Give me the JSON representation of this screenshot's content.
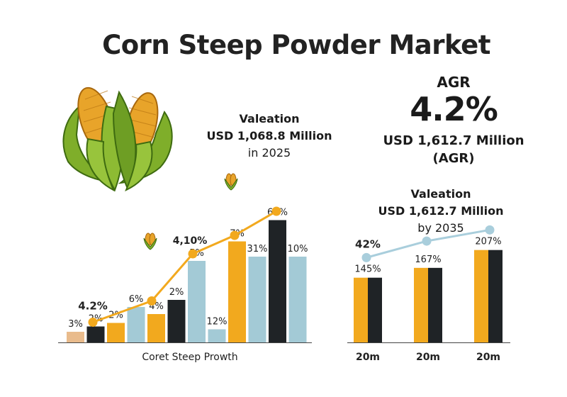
{
  "title": "Corn Steep Powder Market",
  "left_callout": {
    "label": "Valeation",
    "amount": "USD 1,068.8 Million",
    "note": "in 2025"
  },
  "agr": {
    "label": "AGR",
    "value": "4.2%",
    "amount": "USD 1,612.7 Million",
    "note": "(AGR)"
  },
  "right_callout": {
    "label": "Valeation",
    "amount": "USD 1,612.7 Million",
    "note": "by 2035"
  },
  "colors": {
    "orange": "#F2A91E",
    "light_blue": "#A3CAD6",
    "black": "#1F2326",
    "peach": "#E9BB8C",
    "line_blue": "#A9CEDC"
  },
  "icons": [
    "corn-illustration",
    "corn-marker-icon"
  ],
  "chart_data": [
    {
      "type": "bar",
      "xlabel": "Coret Steep Prowth",
      "bars": [
        {
          "label": "3%",
          "value": 3,
          "color": "peach"
        },
        {
          "label": "2%",
          "value": 4.5,
          "color": "black"
        },
        {
          "label": "2%",
          "value": 5.5,
          "color": "orange"
        },
        {
          "label": "6%",
          "value": 10,
          "color": "light_blue"
        },
        {
          "label": "4%",
          "value": 8,
          "color": "orange"
        },
        {
          "label": "2%",
          "value": 12,
          "color": "black"
        },
        {
          "label": "5%",
          "value": 23,
          "color": "light_blue"
        },
        {
          "label": "12%",
          "value": 3.7,
          "color": "light_blue"
        },
        {
          "label": "7%",
          "value": 28.5,
          "color": "orange"
        },
        {
          "label": "31%",
          "value": 24.2,
          "color": "light_blue"
        },
        {
          "label": "65%",
          "value": 34.5,
          "color": "black"
        },
        {
          "label": "10%",
          "value": 24.2,
          "color": "light_blue"
        }
      ],
      "line": {
        "values": [
          5.7,
          11.7,
          25,
          30.2,
          37
        ],
        "point_labels": [
          "4.2%",
          "",
          "4,10%",
          "",
          ""
        ]
      },
      "ylim": [
        0,
        40
      ]
    },
    {
      "type": "bar",
      "categories": [
        "20m",
        "20m",
        "20m"
      ],
      "series": [
        {
          "color": "orange",
          "values": [
            145,
            167,
            207
          ]
        },
        {
          "color": "black",
          "values": [
            145,
            167,
            207
          ]
        }
      ],
      "bar_labels": [
        "145%",
        "167%",
        "207%"
      ],
      "line": {
        "values": [
          190,
          227,
          252
        ],
        "point_labels": [
          "42%",
          "",
          ""
        ]
      },
      "ylim": [
        0,
        270
      ]
    }
  ]
}
